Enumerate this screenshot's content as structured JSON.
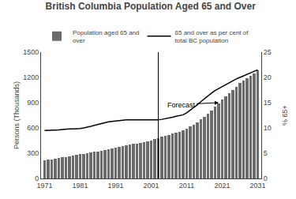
{
  "chart_data": {
    "type": "bar",
    "title": "British Columbia Population Aged 65 and Over",
    "ylabel": "Persons (Thousands)",
    "y2label": "% 65+",
    "x": [
      1971,
      1972,
      1973,
      1974,
      1975,
      1976,
      1977,
      1978,
      1979,
      1980,
      1981,
      1982,
      1983,
      1984,
      1985,
      1986,
      1987,
      1988,
      1989,
      1990,
      1991,
      1992,
      1993,
      1994,
      1995,
      1996,
      1997,
      1998,
      1999,
      2000,
      2001,
      2002,
      2003,
      2004,
      2005,
      2006,
      2007,
      2008,
      2009,
      2010,
      2011,
      2012,
      2013,
      2014,
      2015,
      2016,
      2017,
      2018,
      2019,
      2020,
      2021,
      2022,
      2023,
      2024,
      2025,
      2026,
      2027,
      2028,
      2029,
      2030,
      2031
    ],
    "series": [
      {
        "name": "Population aged 65 and\nover",
        "type": "bar",
        "color": "#6b6b6b",
        "values": [
          215,
          222,
          228,
          235,
          242,
          250,
          257,
          265,
          272,
          279,
          287,
          294,
          301,
          308,
          315,
          322,
          330,
          338,
          346,
          355,
          364,
          375,
          385,
          393,
          400,
          408,
          415,
          422,
          430,
          440,
          452,
          465,
          480,
          495,
          510,
          520,
          530,
          545,
          555,
          570,
          590,
          615,
          640,
          665,
          700,
          735,
          770,
          810,
          855,
          895,
          935,
          975,
          1010,
          1050,
          1090,
          1130,
          1165,
          1195,
          1220,
          1250,
          1280
        ]
      },
      {
        "name": "65 and over as per cent of\ntotal BC population",
        "type": "line",
        "color": "#000000",
        "axis": "y2",
        "values": [
          9.5,
          9.5,
          9.5,
          9.5,
          9.6,
          9.7,
          9.8,
          9.8,
          9.8,
          9.8,
          9.9,
          10.0,
          10.1,
          10.3,
          10.5,
          10.7,
          10.9,
          11.1,
          11.2,
          11.3,
          11.4,
          11.5,
          11.6,
          11.6,
          11.6,
          11.6,
          11.5,
          11.5,
          11.5,
          11.5,
          11.5,
          11.5,
          11.6,
          11.7,
          11.8,
          12.0,
          12.1,
          12.3,
          12.4,
          12.6,
          13.0,
          13.5,
          14.0,
          14.6,
          15.2,
          15.8,
          16.4,
          16.9,
          17.4,
          17.8,
          18.2,
          18.6,
          19.0,
          19.4,
          19.7,
          20.0,
          20.3,
          20.6,
          20.9,
          21.2,
          21.5
        ]
      }
    ],
    "xlim": [
      1970,
      2032
    ],
    "xticks": [
      1971,
      1981,
      1991,
      2001,
      2011,
      2021,
      2031
    ],
    "ylim": [
      0,
      1500
    ],
    "yticks": [
      0,
      300,
      600,
      900,
      1200,
      1500
    ],
    "y2lim": [
      0,
      25
    ],
    "y2ticks": [
      0,
      5,
      10,
      15,
      20,
      25
    ],
    "legend": "upper left",
    "grid": false,
    "annotations": [
      {
        "text": "Forecast",
        "x": 2005,
        "y": 870,
        "arrow_x": 2020,
        "arrow_y": 900
      }
    ],
    "vlines": [
      {
        "x": 2003,
        "color": "#000000"
      }
    ]
  }
}
